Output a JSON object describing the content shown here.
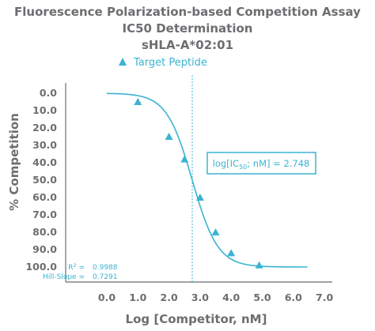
{
  "title": {
    "line1": "Fluorescence Polarization-based Competition Assay",
    "line2": "IC50 Determination",
    "line3": "sHLA-A*02:01"
  },
  "colors": {
    "accent": "#3bb3d1",
    "text": "#6d6e71",
    "axis": "#6d6e71"
  },
  "chart_data": {
    "type": "scatter",
    "xlabel": "Log [Competitor, nM]",
    "ylabel": "% Competition",
    "xlim": [
      -0.5,
      6.8
    ],
    "ylim": [
      0,
      105
    ],
    "y_inverted": true,
    "x_ticks": [
      "0.0",
      "1.0",
      "2.0",
      "3.0",
      "4.0",
      "5.0",
      "6.0",
      "7.0"
    ],
    "y_ticks": [
      "0.0",
      "10.0",
      "20.0",
      "30.0",
      "40.0",
      "50.0",
      "60.0",
      "70.0",
      "80.0",
      "90.0",
      "100.0"
    ],
    "legend_placement": "top",
    "series": [
      {
        "name": "Target Peptide",
        "marker": "triangle",
        "color": "#3bb3d1",
        "points": [
          {
            "x": 1.0,
            "y": 5.0
          },
          {
            "x": 2.0,
            "y": 25.0
          },
          {
            "x": 2.5,
            "y": 38.0
          },
          {
            "x": 3.0,
            "y": 60.0
          },
          {
            "x": 3.5,
            "y": 80.0
          },
          {
            "x": 4.0,
            "y": 92.0
          },
          {
            "x": 4.9,
            "y": 99.0
          }
        ]
      }
    ],
    "fit": {
      "type": "four-parameter logistic",
      "log_ic50": 2.748,
      "hill_slope": 0.7291,
      "bottom": 0,
      "top": 100
    },
    "ic50_line_x": 2.748,
    "annotations": {
      "ic50_label": "log[IC50; nM] = 2.748",
      "ic50_prefix": "log[IC",
      "ic50_sub": "50",
      "ic50_suffix": "; nM] = 2.748",
      "r2_label": "R",
      "r2_sup": "2",
      "r2_eq": " =",
      "r2_value": "0.9988",
      "hill_label": "Hill-Slope =",
      "hill_value": "0.7291"
    }
  }
}
